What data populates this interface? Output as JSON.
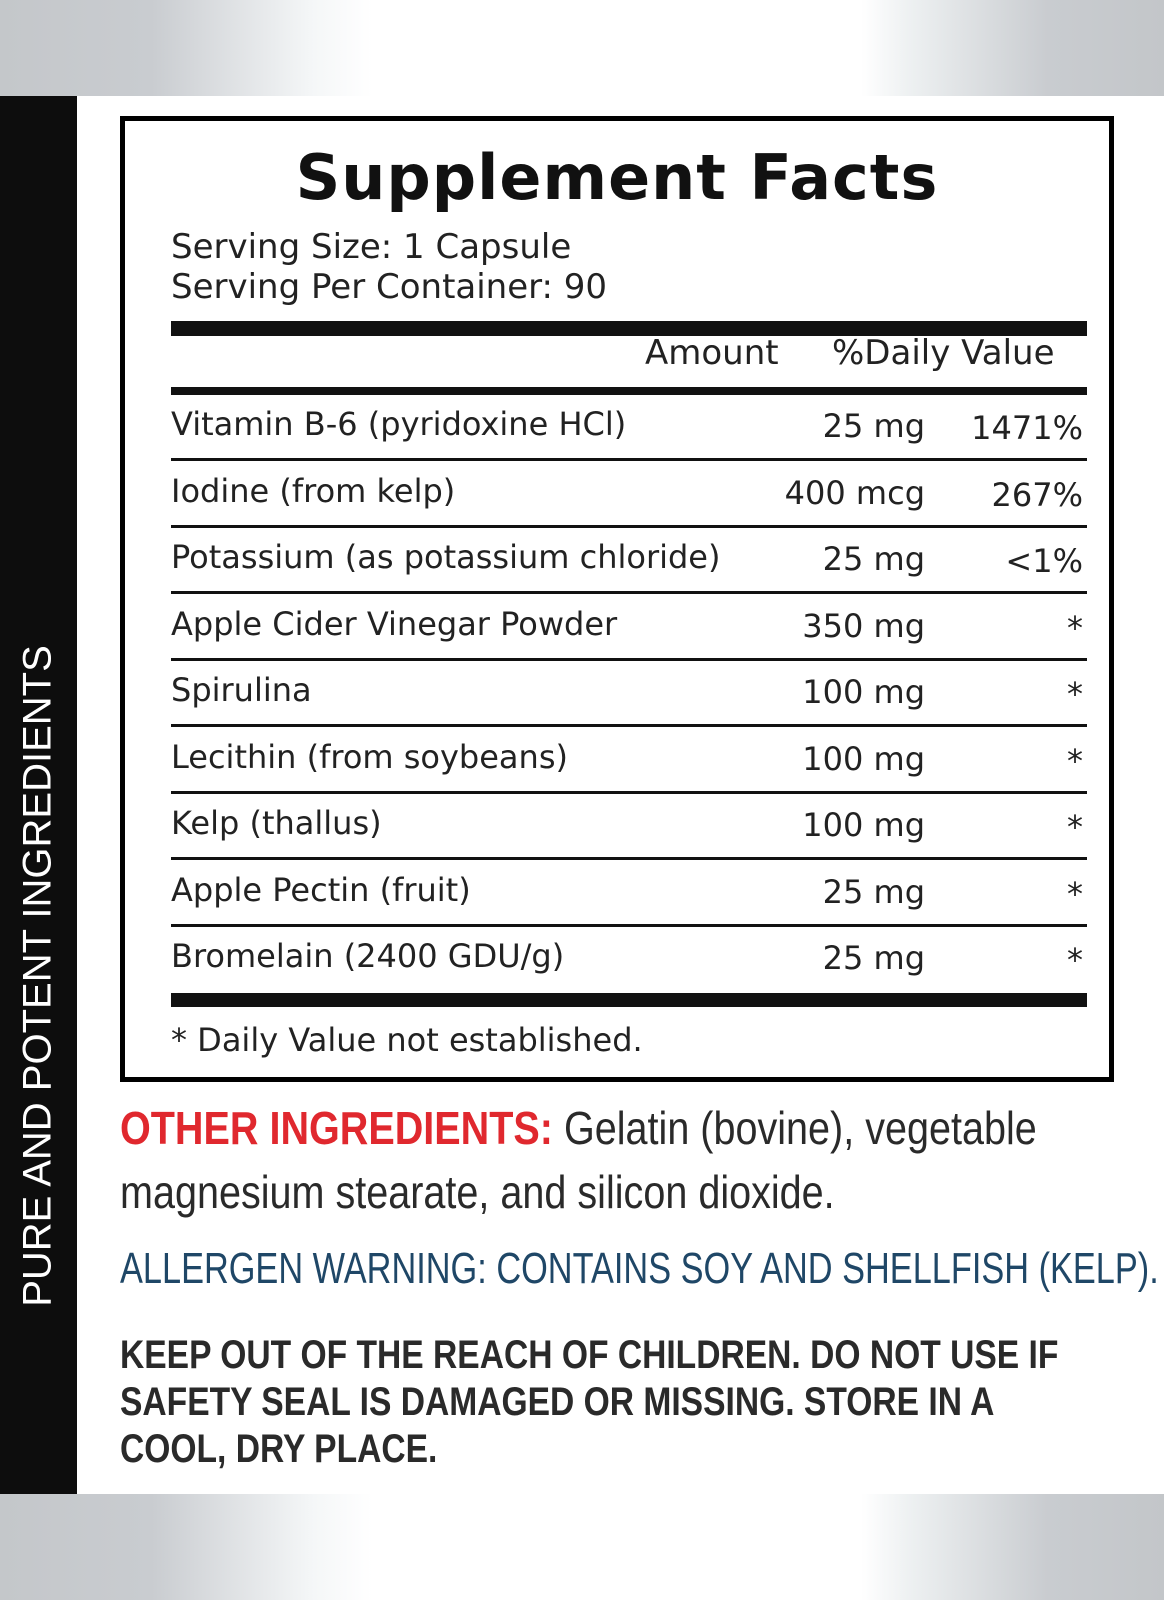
{
  "sidebar_text": "PURE AND POTENT INGREDIENTS",
  "facts": {
    "title": "Supplement Facts",
    "serving_size": "Serving Size: 1 Capsule",
    "servings_per_container": "Serving Per Container: 90",
    "amount_header": "Amount",
    "dv_header": "%Daily Value",
    "rows": [
      {
        "name": "Vitamin B-6 (pyridoxine HCl)",
        "amount": "25 mg",
        "dv": "1471%"
      },
      {
        "name": "Iodine (from kelp)",
        "amount": "400 mcg",
        "dv": "267%"
      },
      {
        "name": "Potassium (as potassium chloride)",
        "amount": "25 mg",
        "dv": "<1%"
      },
      {
        "name": "Apple Cider Vinegar Powder",
        "amount": "350 mg",
        "dv": "*"
      },
      {
        "name": "Spirulina",
        "amount": "100 mg",
        "dv": "*"
      },
      {
        "name": "Lecithin (from soybeans)",
        "amount": "100 mg",
        "dv": "*"
      },
      {
        "name": "Kelp (thallus)",
        "amount": "100 mg",
        "dv": "*"
      },
      {
        "name": "Apple Pectin (fruit)",
        "amount": "25 mg",
        "dv": "*"
      },
      {
        "name": "Bromelain (2400 GDU/g)",
        "amount": "25 mg",
        "dv": "*"
      }
    ],
    "footnote": "* Daily Value not established."
  },
  "other_ingredients": {
    "label": "OTHER INGREDIENTS:",
    "text": " Gelatin (bovine), vegetable magnesium stearate, and silicon dioxide."
  },
  "allergen_warning": "ALLERGEN WARNING: CONTAINS SOY AND SHELLFISH (KELP).",
  "keep_out": "KEEP OUT OF THE REACH OF CHILDREN. DO NOT USE IF SAFETY SEAL IS DAMAGED OR MISSING. STORE IN A COOL, DRY PLACE.",
  "colors": {
    "other_label": "#e0282e",
    "allergen": "#1f4767",
    "sidebar": "#0d0d0d"
  }
}
